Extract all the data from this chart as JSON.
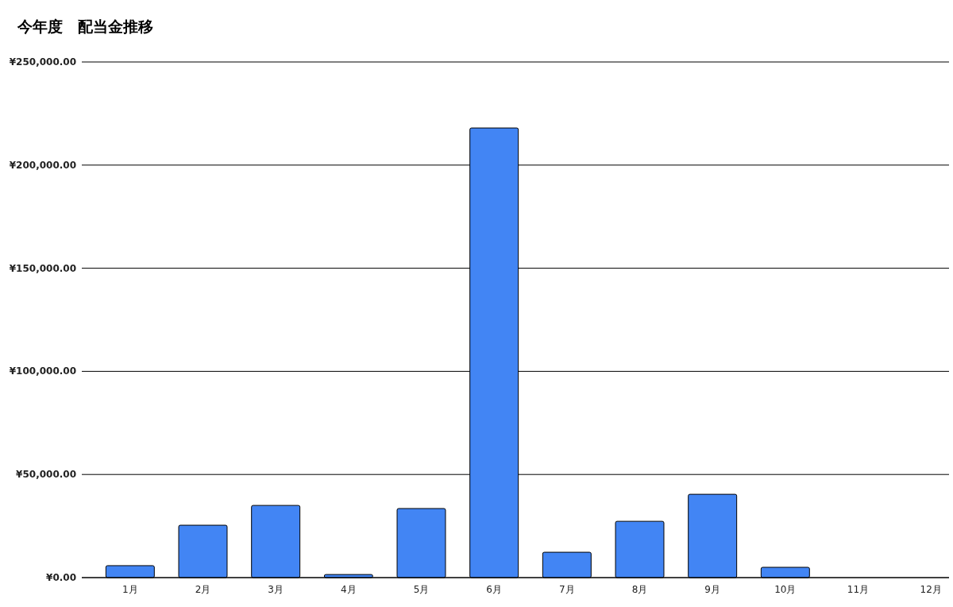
{
  "chart_data": {
    "type": "bar",
    "title": "今年度　配当金推移",
    "categories": [
      "1月",
      "2月",
      "3月",
      "4月",
      "5月",
      "6月",
      "7月",
      "8月",
      "9月",
      "10月",
      "11月",
      "12月"
    ],
    "values": [
      5800,
      25400,
      35000,
      1500,
      33500,
      218000,
      12300,
      27300,
      40400,
      5000,
      0,
      0
    ],
    "color": "#4285f4",
    "ylim": [
      0,
      250000
    ],
    "yticks": [
      {
        "value": 0,
        "label": "¥0.00"
      },
      {
        "value": 50000,
        "label": "¥50,000.00"
      },
      {
        "value": 100000,
        "label": "¥100,000.00"
      },
      {
        "value": 150000,
        "label": "¥150,000.00"
      },
      {
        "value": 200000,
        "label": "¥200,000.00"
      },
      {
        "value": 250000,
        "label": "¥250,000.00"
      }
    ],
    "grid": "y"
  }
}
